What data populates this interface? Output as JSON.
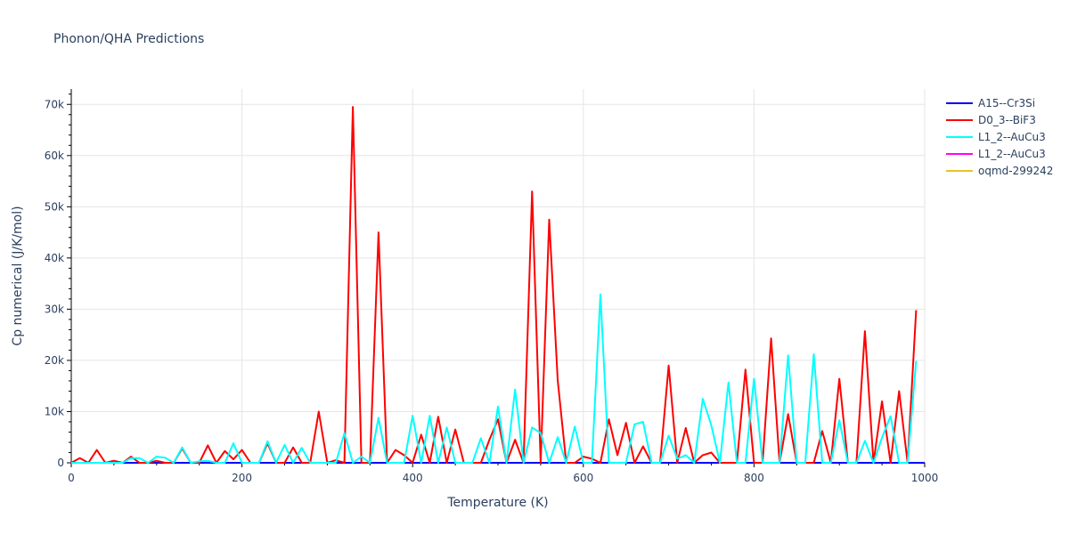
{
  "chart_data": {
    "type": "line",
    "title": "Phonon/QHA Predictions",
    "xlabel": "Temperature (K)",
    "ylabel": "Cp numerical (J/K/mol)",
    "xlim": [
      0,
      1000
    ],
    "ylim": [
      0,
      73000
    ],
    "xticks": [
      0,
      200,
      400,
      600,
      800,
      1000
    ],
    "xtick_labels": [
      "0",
      "200",
      "400",
      "600",
      "800",
      "1000"
    ],
    "yticks": [
      0,
      10000,
      20000,
      30000,
      40000,
      50000,
      60000,
      70000
    ],
    "ytick_labels": [
      "0",
      "10k",
      "20k",
      "30k",
      "40k",
      "50k",
      "60k",
      "70k"
    ],
    "grid": true,
    "legend_position": "top-right",
    "series": [
      {
        "name": "A15--Cr3Si",
        "color": "#0000ff",
        "x": [
          0,
          1000
        ],
        "y": [
          0,
          0
        ]
      },
      {
        "name": "D0_3--BiF3",
        "color": "#ff0000",
        "x": [
          0,
          10,
          20,
          30,
          40,
          50,
          60,
          70,
          80,
          90,
          100,
          110,
          120,
          130,
          140,
          150,
          160,
          170,
          180,
          190,
          200,
          210,
          220,
          230,
          240,
          250,
          260,
          270,
          280,
          290,
          300,
          310,
          320,
          330,
          340,
          350,
          360,
          370,
          380,
          390,
          400,
          410,
          420,
          430,
          440,
          450,
          460,
          470,
          480,
          490,
          500,
          510,
          520,
          530,
          540,
          550,
          560,
          570,
          580,
          590,
          600,
          610,
          620,
          630,
          640,
          650,
          660,
          670,
          680,
          690,
          700,
          710,
          720,
          730,
          740,
          750,
          760,
          770,
          780,
          790,
          800,
          810,
          820,
          830,
          840,
          850,
          860,
          870,
          880,
          890,
          900,
          910,
          920,
          930,
          940,
          950,
          960,
          970,
          980,
          990
        ],
        "y": [
          0,
          900,
          0,
          2500,
          0,
          400,
          0,
          1200,
          0,
          0,
          400,
          0,
          0,
          2800,
          0,
          0,
          3400,
          0,
          2300,
          700,
          2500,
          0,
          0,
          3800,
          0,
          0,
          3000,
          0,
          0,
          10000,
          0,
          500,
          0,
          69500,
          0,
          0,
          45000,
          0,
          2500,
          1500,
          0,
          5500,
          0,
          9000,
          0,
          6500,
          0,
          0,
          0,
          4500,
          8500,
          0,
          4500,
          0,
          53000,
          0,
          47500,
          16000,
          0,
          0,
          1200,
          800,
          0,
          8500,
          1500,
          7800,
          0,
          3200,
          0,
          0,
          19000,
          0,
          6800,
          0,
          1500,
          2000,
          0,
          0,
          0,
          18200,
          0,
          0,
          24300,
          0,
          9500,
          0,
          0,
          0,
          6200,
          0,
          16400,
          0,
          0,
          25700,
          0,
          12000,
          0,
          14000,
          0,
          29800
        ]
      },
      {
        "name": "L1_2--AuCu3",
        "color": "#00ffff",
        "x": [
          0,
          10,
          20,
          30,
          40,
          50,
          60,
          70,
          80,
          90,
          100,
          110,
          120,
          130,
          140,
          150,
          160,
          170,
          180,
          190,
          200,
          210,
          220,
          230,
          240,
          250,
          260,
          270,
          280,
          290,
          300,
          310,
          320,
          330,
          340,
          350,
          360,
          370,
          380,
          390,
          400,
          410,
          420,
          430,
          440,
          450,
          460,
          470,
          480,
          490,
          500,
          510,
          520,
          530,
          540,
          550,
          560,
          570,
          580,
          590,
          600,
          610,
          620,
          630,
          640,
          650,
          660,
          670,
          680,
          690,
          700,
          710,
          720,
          730,
          740,
          750,
          760,
          770,
          780,
          790,
          800,
          810,
          820,
          830,
          840,
          850,
          860,
          870,
          880,
          890,
          900,
          910,
          920,
          930,
          940,
          950,
          960,
          970,
          980,
          990
        ],
        "y": [
          0,
          0,
          0,
          0,
          0,
          0,
          0,
          900,
          900,
          0,
          1200,
          1000,
          0,
          3000,
          0,
          300,
          400,
          0,
          0,
          3800,
          0,
          0,
          0,
          4200,
          0,
          3500,
          0,
          2900,
          0,
          0,
          0,
          0,
          5800,
          0,
          1200,
          0,
          8800,
          0,
          0,
          0,
          9200,
          0,
          9200,
          0,
          6900,
          0,
          0,
          0,
          4800,
          0,
          11000,
          0,
          14300,
          0,
          6900,
          5800,
          0,
          5000,
          0,
          7100,
          0,
          0,
          32900,
          0,
          0,
          0,
          7500,
          8000,
          0,
          0,
          5300,
          800,
          1500,
          0,
          12500,
          7300,
          0,
          15700,
          0,
          0,
          16400,
          0,
          0,
          0,
          21000,
          0,
          0,
          21200,
          0,
          0,
          8300,
          0,
          0,
          4300,
          0,
          4900,
          9100,
          0,
          0,
          19900
        ]
      },
      {
        "name": "L1_2--AuCu3",
        "color": "#ff00ff",
        "x": [
          0,
          1000
        ],
        "y": [
          0,
          0
        ]
      },
      {
        "name": "oqmd-299242",
        "color": "#e6c229",
        "x": [
          0,
          1000
        ],
        "y": [
          0,
          0
        ]
      }
    ]
  }
}
